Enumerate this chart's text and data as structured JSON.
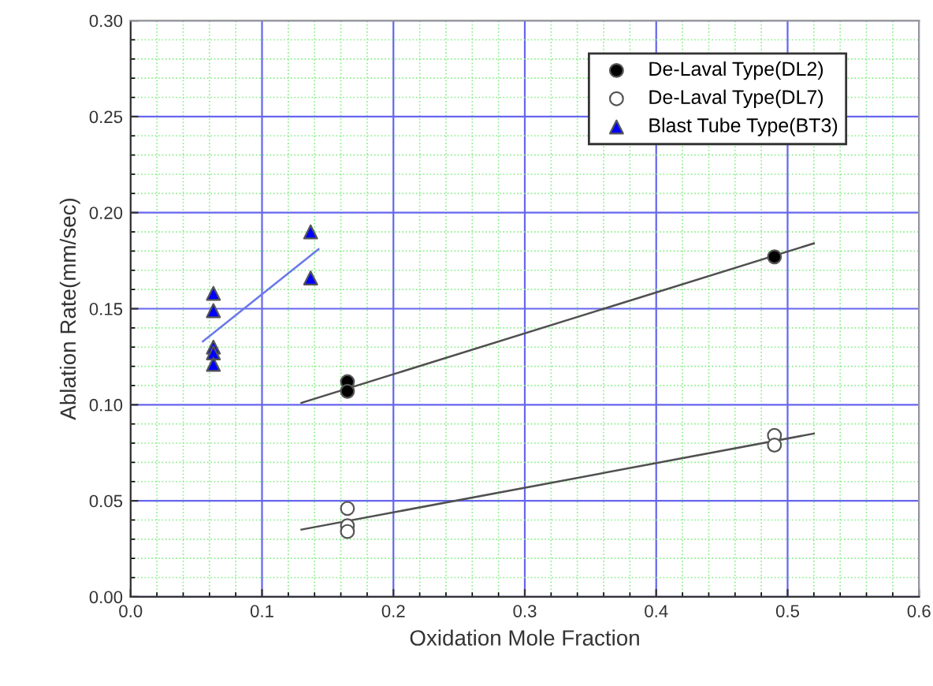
{
  "chart_data": {
    "type": "scatter",
    "xlabel": "Oxidation Mole Fraction",
    "ylabel": "Ablation Rate(mm/sec)",
    "xlim": [
      0.0,
      0.6
    ],
    "xticks": [
      {
        "value": 0.0,
        "label": "0.0"
      },
      {
        "value": 0.02,
        "label": null
      },
      {
        "value": 0.04,
        "label": null
      },
      {
        "value": 0.06,
        "label": null
      },
      {
        "value": 0.08,
        "label": null
      },
      0.1,
      {
        "value": 0.12,
        "label": null
      },
      {
        "value": 0.14,
        "label": null
      },
      {
        "value": 0.16,
        "label": null
      },
      {
        "value": 0.18,
        "label": null
      },
      0.2,
      {
        "value": 0.22,
        "label": null
      },
      {
        "value": 0.24,
        "label": null
      },
      {
        "value": 0.26,
        "label": null
      },
      {
        "value": 0.28,
        "label": null
      },
      0.3,
      {
        "value": 0.32,
        "label": null
      },
      {
        "value": 0.34,
        "label": null
      },
      {
        "value": 0.36,
        "label": null
      },
      {
        "value": 0.38,
        "label": null
      },
      0.4,
      {
        "value": 0.42,
        "label": null
      },
      {
        "value": 0.44,
        "label": null
      },
      {
        "value": 0.46,
        "label": null
      },
      {
        "value": 0.48,
        "label": null
      },
      0.5,
      {
        "value": 0.52,
        "label": null
      },
      {
        "value": 0.54,
        "label": null
      },
      {
        "value": 0.56,
        "label": null
      },
      {
        "value": 0.58,
        "label": null
      },
      0.6
    ],
    "ylim": [
      0.0,
      0.3
    ],
    "yticks": [
      {
        "value": 0.0,
        "label": "0.00"
      },
      {
        "value": 0.01,
        "label": null
      },
      {
        "value": 0.02,
        "label": null
      },
      {
        "value": 0.03,
        "label": null
      },
      {
        "value": 0.04,
        "label": null
      },
      0.05,
      {
        "value": 0.06,
        "label": null
      },
      {
        "value": 0.07,
        "label": null
      },
      {
        "value": 0.08,
        "label": null
      },
      {
        "value": 0.09,
        "label": null
      },
      {
        "value": 0.1,
        "label": "0.10"
      },
      {
        "value": 0.11,
        "label": null
      },
      {
        "value": 0.12,
        "label": null
      },
      {
        "value": 0.13,
        "label": null
      },
      {
        "value": 0.14,
        "label": null
      },
      0.15,
      {
        "value": 0.16,
        "label": null
      },
      {
        "value": 0.17,
        "label": null
      },
      {
        "value": 0.18,
        "label": null
      },
      {
        "value": 0.19,
        "label": null
      },
      {
        "value": 0.2,
        "label": "0.20"
      },
      {
        "value": 0.21,
        "label": null
      },
      {
        "value": 0.22,
        "label": null
      },
      {
        "value": 0.23,
        "label": null
      },
      {
        "value": 0.24,
        "label": null
      },
      0.25,
      {
        "value": 0.26,
        "label": null
      },
      {
        "value": 0.27,
        "label": null
      },
      {
        "value": 0.28,
        "label": null
      },
      {
        "value": 0.29,
        "label": null
      },
      {
        "value": 0.3,
        "label": "0.30"
      }
    ],
    "grid": true,
    "legend": "top right",
    "series": [
      {
        "name": "De-Laval Type(DL2)",
        "marker": "circle",
        "color": "#000000",
        "x": [
          0.165,
          0.165,
          0.49
        ],
        "values": [
          0.112,
          0.107,
          0.177
        ]
      },
      {
        "name": "De-Laval Type(DL7)",
        "marker": "circle",
        "color": "#ffffff",
        "x": [
          0.165,
          0.165,
          0.165,
          0.49,
          0.49
        ],
        "values": [
          0.046,
          0.037,
          0.034,
          0.084,
          0.079
        ]
      },
      {
        "name": "Blast Tube Type(BT3)",
        "marker": "triangle",
        "color": "#0000ff",
        "x": [
          0.063,
          0.063,
          0.063,
          0.063,
          0.063,
          0.137,
          0.137
        ],
        "values": [
          0.158,
          0.149,
          0.13,
          0.127,
          0.121,
          0.19,
          0.166
        ]
      },
      {
        "type": "line",
        "color": "#505050",
        "x": [
          0.13,
          0.52
        ],
        "values": [
          0.101,
          0.184
        ]
      },
      {
        "type": "line",
        "color": "#505050",
        "x": [
          0.13,
          0.52
        ],
        "values": [
          0.035,
          0.085
        ]
      },
      {
        "type": "line",
        "color": "#6a78e8",
        "x": [
          0.055,
          0.143
        ],
        "values": [
          0.133,
          0.181
        ]
      }
    ]
  }
}
